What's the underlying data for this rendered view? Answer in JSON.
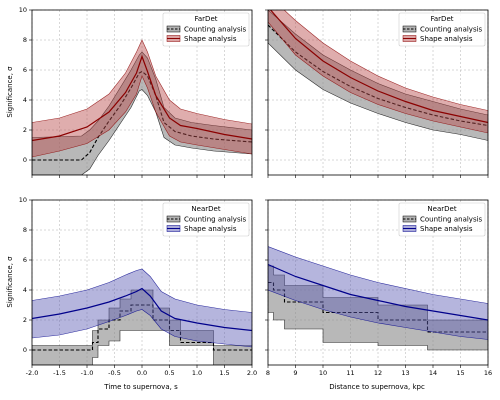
{
  "figure": {
    "ylabel_top": "Significance, σ",
    "ylabel_bottom": "Significance, σ",
    "xlabel_left": "Time to supernova, s",
    "xlabel_right": "Distance to supernova, kpc"
  },
  "chart_data": [
    {
      "type": "line",
      "panel": "top-left",
      "legend": {
        "title": "FarDet",
        "placement": "top-right",
        "entries": [
          "Counting analysis",
          "Shape analysis"
        ]
      },
      "xlabel": "",
      "ylabel": "Significance, σ",
      "xlim": [
        -2,
        2
      ],
      "ylim": [
        -1,
        10
      ],
      "xticks": [
        "-2.0",
        "-1.5",
        "-1.0",
        "-0.5",
        "0.0",
        "0.5",
        "1.0",
        "1.5",
        "2.0"
      ],
      "yticks": [
        "0",
        "2",
        "4",
        "6",
        "8",
        "10"
      ],
      "grid": true,
      "colors": {
        "counting": "#000000",
        "counting_band": "#888888",
        "shape": "#8b0000",
        "shape_band": "#b84a4a"
      },
      "series": [
        {
          "name": "Counting analysis",
          "style": "dashed",
          "x": [
            -2,
            -1.1,
            -0.95,
            -0.8,
            -0.6,
            -0.4,
            -0.2,
            -0.05,
            0,
            0.1,
            0.25,
            0.4,
            0.6,
            0.9,
            1.3,
            2
          ],
          "y": [
            0,
            0,
            0.5,
            1.5,
            2.6,
            3.6,
            4.8,
            5.8,
            5.9,
            5.6,
            4.3,
            2.5,
            1.9,
            1.6,
            1.4,
            1.2
          ],
          "band_low": [
            -1,
            -1,
            -0.6,
            0.3,
            1.3,
            2.4,
            3.5,
            4.6,
            4.7,
            4.3,
            3.2,
            1.5,
            1.0,
            0.8,
            0.6,
            0.4
          ],
          "band_high": [
            1.5,
            1.6,
            2.0,
            2.6,
            3.6,
            4.8,
            6.0,
            7.0,
            7.2,
            6.8,
            5.4,
            3.5,
            2.8,
            2.5,
            2.3,
            2.0
          ]
        },
        {
          "name": "Shape analysis",
          "style": "solid",
          "x": [
            -2,
            -1.5,
            -1.0,
            -0.6,
            -0.3,
            -0.1,
            0,
            0.1,
            0.25,
            0.5,
            0.7,
            1.0,
            1.5,
            2
          ],
          "y": [
            1.3,
            1.6,
            2.2,
            3.2,
            4.5,
            5.8,
            6.9,
            5.9,
            4.3,
            2.8,
            2.3,
            2.1,
            1.7,
            1.4
          ],
          "band_low": [
            0.2,
            0.6,
            1.1,
            2.0,
            3.2,
            4.4,
            5.6,
            4.8,
            3.2,
            1.6,
            1.2,
            1.0,
            0.7,
            0.4
          ],
          "band_high": [
            2.5,
            2.8,
            3.4,
            4.4,
            5.8,
            7.2,
            8.0,
            7.2,
            5.6,
            4.0,
            3.4,
            3.1,
            2.7,
            2.4
          ]
        }
      ]
    },
    {
      "type": "line",
      "panel": "top-right",
      "legend": {
        "title": "FarDet",
        "placement": "top-right",
        "entries": [
          "Counting analysis",
          "Shape analysis"
        ]
      },
      "xlabel": "",
      "ylabel": "",
      "xlim": [
        8,
        16
      ],
      "ylim": [
        -1,
        10
      ],
      "xticks": [
        "8",
        "9",
        "10",
        "11",
        "12",
        "13",
        "14",
        "15",
        "16"
      ],
      "yticks": [],
      "grid": true,
      "colors": {
        "counting": "#000000",
        "counting_band": "#888888",
        "shape": "#8b0000",
        "shape_band": "#b84a4a"
      },
      "series": [
        {
          "name": "Counting analysis",
          "style": "dashed",
          "x": [
            8,
            9,
            10,
            11,
            12,
            13,
            14,
            15,
            16
          ],
          "y": [
            9.0,
            7.2,
            5.9,
            4.9,
            4.1,
            3.5,
            3.0,
            2.6,
            2.3
          ],
          "band_low": [
            7.8,
            6.0,
            4.7,
            3.8,
            3.1,
            2.5,
            2.0,
            1.7,
            1.3
          ],
          "band_high": [
            10.0,
            8.4,
            7.0,
            6.0,
            5.1,
            4.4,
            3.9,
            3.4,
            3.0
          ]
        },
        {
          "name": "Shape analysis",
          "style": "solid",
          "x": [
            8,
            9,
            10,
            11,
            12,
            13,
            14,
            15,
            16
          ],
          "y": [
            10.2,
            8.1,
            6.6,
            5.5,
            4.6,
            3.9,
            3.3,
            2.9,
            2.5
          ],
          "band_low": [
            9.2,
            7.0,
            5.6,
            4.5,
            3.7,
            3.1,
            2.6,
            2.2,
            1.8
          ],
          "band_high": [
            11.0,
            9.3,
            7.8,
            6.6,
            5.6,
            4.8,
            4.2,
            3.7,
            3.3
          ]
        }
      ]
    },
    {
      "type": "line",
      "panel": "bottom-left",
      "legend": {
        "title": "NearDet",
        "placement": "top-right",
        "entries": [
          "Counting analysis",
          "Shape analysis"
        ]
      },
      "xlabel": "Time to supernova, s",
      "ylabel": "Significance, σ",
      "xlim": [
        -2,
        2
      ],
      "ylim": [
        -1,
        10
      ],
      "xticks": [
        "-2.0",
        "-1.5",
        "-1.0",
        "-0.5",
        "0.0",
        "0.5",
        "1.0",
        "1.5",
        "2.0"
      ],
      "yticks": [
        "0",
        "2",
        "4",
        "6",
        "8",
        "10"
      ],
      "grid": true,
      "colors": {
        "counting": "#000000",
        "counting_band": "#888888",
        "shape": "#00008b",
        "shape_band": "#5a5ab4"
      },
      "series": [
        {
          "name": "Counting analysis",
          "style": "step-dashed",
          "edges": [
            -2,
            -0.9,
            -0.8,
            -0.6,
            -0.4,
            -0.2,
            0,
            0.2,
            0.5,
            0.7,
            1.3,
            2
          ],
          "y": [
            0,
            0.5,
            1.4,
            2.0,
            2.6,
            3.0,
            3.0,
            2.0,
            1.3,
            0.5,
            0
          ],
          "band_low": [
            -1,
            -0.5,
            0.3,
            0.6,
            1.3,
            1.3,
            1.3,
            1.3,
            0.3,
            0.3,
            -1
          ],
          "band_high": [
            0.3,
            1.3,
            2.0,
            2.8,
            3.4,
            4.0,
            4.0,
            2.8,
            2.0,
            1.3,
            0.3
          ]
        },
        {
          "name": "Shape analysis",
          "style": "solid",
          "x": [
            -2,
            -1.5,
            -1.0,
            -0.6,
            -0.3,
            -0.1,
            0,
            0.15,
            0.35,
            0.6,
            1.0,
            1.5,
            2
          ],
          "y": [
            2.1,
            2.4,
            2.8,
            3.2,
            3.6,
            3.9,
            4.1,
            3.6,
            2.6,
            2.1,
            1.8,
            1.5,
            1.3
          ],
          "band_low": [
            0.8,
            1.0,
            1.4,
            1.9,
            2.3,
            2.6,
            2.7,
            2.3,
            1.4,
            0.9,
            0.6,
            0.4,
            0.2
          ],
          "band_high": [
            3.3,
            3.6,
            4.0,
            4.5,
            5.0,
            5.3,
            5.4,
            4.9,
            3.9,
            3.4,
            3.0,
            2.7,
            2.5
          ]
        }
      ]
    },
    {
      "type": "line",
      "panel": "bottom-right",
      "legend": {
        "title": "NearDet",
        "placement": "top-right",
        "entries": [
          "Counting analysis",
          "Shape analysis"
        ]
      },
      "xlabel": "Distance to supernova, kpc",
      "ylabel": "",
      "xlim": [
        8,
        16
      ],
      "ylim": [
        -1,
        10
      ],
      "xticks": [
        "8",
        "9",
        "10",
        "11",
        "12",
        "13",
        "14",
        "15",
        "16"
      ],
      "yticks": [],
      "grid": true,
      "colors": {
        "counting": "#000000",
        "counting_band": "#888888",
        "shape": "#00008b",
        "shape_band": "#5a5ab4"
      },
      "series": [
        {
          "name": "Counting analysis",
          "style": "step-dashed",
          "edges": [
            8,
            8.2,
            8.6,
            10.0,
            12.0,
            13.8,
            16
          ],
          "y": [
            4.5,
            4.0,
            3.2,
            2.5,
            2.0,
            1.2
          ],
          "band_low": [
            2.5,
            2.0,
            1.4,
            0.5,
            0.3,
            0
          ],
          "band_high": [
            5.6,
            5.0,
            4.3,
            3.5,
            3.0,
            2.0
          ]
        },
        {
          "name": "Shape analysis",
          "style": "solid",
          "x": [
            8,
            9,
            10,
            11,
            12,
            13,
            14,
            15,
            16
          ],
          "y": [
            5.7,
            4.9,
            4.3,
            3.7,
            3.3,
            2.9,
            2.6,
            2.3,
            2.0
          ],
          "band_low": [
            4.0,
            3.3,
            2.7,
            2.2,
            1.8,
            1.5,
            1.2,
            0.9,
            0.7
          ],
          "band_high": [
            6.9,
            6.2,
            5.6,
            5.0,
            4.5,
            4.1,
            3.7,
            3.4,
            3.1
          ]
        }
      ]
    }
  ]
}
